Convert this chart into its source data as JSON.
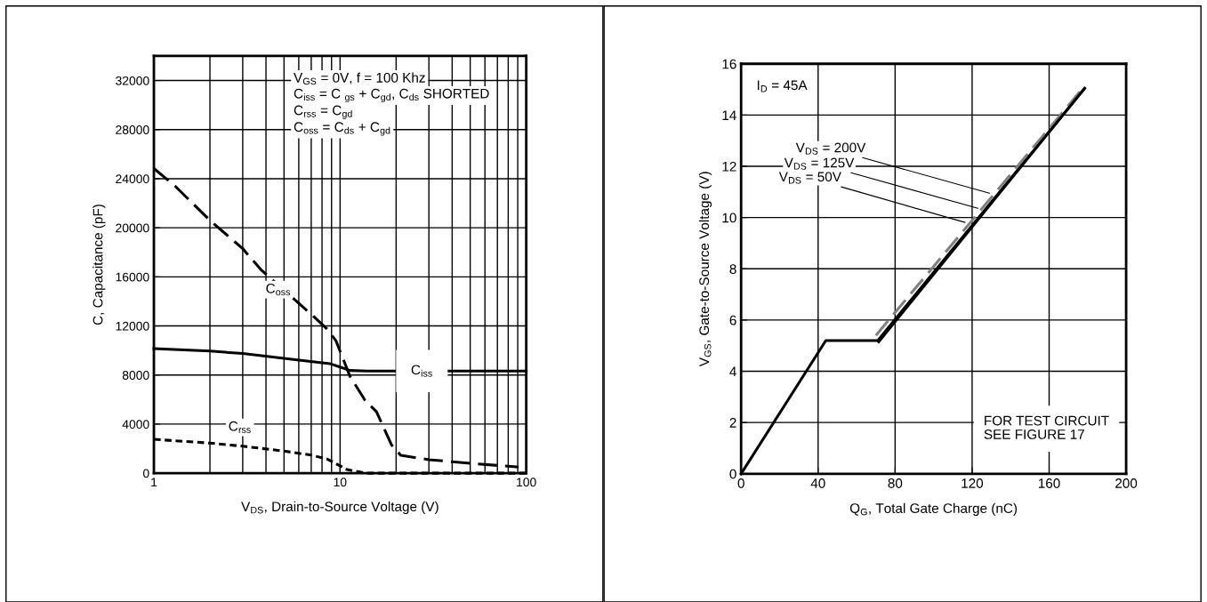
{
  "chart_data": [
    {
      "type": "line",
      "xlabel": "V$_{DS}$, Drain-to-Source Voltage (V)",
      "ylabel": "C, Capacitance (pF)",
      "log": "x",
      "xlim": [
        1,
        100
      ],
      "xticks": [
        1,
        10,
        100
      ],
      "ylim": [
        0,
        34000
      ],
      "yticks": [
        0,
        4000,
        8000,
        12000,
        16000,
        20000,
        24000,
        28000,
        32000
      ],
      "grid": true,
      "series": [
        {
          "color": "#000000",
          "line_style": "solid",
          "x": [
            1,
            2,
            3,
            5,
            8.8,
            10,
            11.3,
            14,
            20,
            50,
            100
          ],
          "values": [
            10150,
            9950,
            9750,
            9350,
            8930,
            8650,
            8370,
            8330,
            8330,
            8330,
            8330
          ]
        },
        {
          "color": "#000000",
          "line_style": "dashed",
          "x": [
            1,
            1.3,
            2,
            3,
            3.75,
            7.3,
            8.5,
            9.5,
            11.3,
            13.6,
            15.7,
            18.9,
            21.2,
            30,
            50,
            91
          ],
          "values": [
            24830,
            23400,
            20600,
            18300,
            16600,
            12700,
            11760,
            10800,
            7900,
            5950,
            5000,
            2300,
            1450,
            1100,
            800,
            500
          ]
        },
        {
          "color": "#000000",
          "line_style": "dotted",
          "x": [
            1,
            2,
            3,
            5,
            7,
            8.5,
            10,
            10.9,
            13.7,
            20,
            50,
            100
          ],
          "values": [
            2760,
            2450,
            2200,
            1800,
            1470,
            1160,
            600,
            290,
            0,
            0,
            0,
            0
          ]
        }
      ],
      "annotations": [
        "V$_{GS}$ = 0V, f = 100 Khz",
        "C$_{iss}$ = C $_{gs}$ + C$_{gd}$, C$_{ds}$ SHORTED",
        "C$_{rss}$ = C$_{gd}$",
        "C$_{oss}$ = C$_{ds}$ + C$_{gd}$",
        "C$_{oss}$",
        "C$_{rss}$",
        {
          "text": "C$_{iss}$",
          "x": 27.5,
          "y": 8330
        }
      ]
    },
    {
      "type": "line",
      "xlabel": "Q$_{G}$, Total Gate Charge (nC)",
      "ylabel": "V$_{GS}$, Gate-to-Source Voltage (V)",
      "xlim": [
        0,
        200
      ],
      "xticks": [
        0,
        40,
        80,
        120,
        160,
        200
      ],
      "ylim": [
        0,
        16
      ],
      "yticks": [
        0,
        2,
        4,
        6,
        8,
        10,
        12,
        14,
        16
      ],
      "grid": true,
      "series": [
        {
          "color": "#000000",
          "line_style": "solid",
          "x": [
            0,
            44,
            71,
            178
          ],
          "values": [
            0,
            5.2,
            5.2,
            15
          ]
        },
        {
          "color": "#808080",
          "line_style": "dashed",
          "x": [
            70,
            177.5
          ],
          "values": [
            5.4,
            15.05
          ]
        },
        {
          "color": "#000000",
          "line_style": "solid",
          "x": [
            71.5,
            178.5
          ],
          "values": [
            5.15,
            15.05
          ]
        }
      ],
      "annotations": [
        "I$_{D}$ = 45A",
        "FOR TEST CIRCUIT\nSEE FIGURE 17",
        {
          "text": "V$_{DS}$ = 200V",
          "x": 129,
          "y": 10.95
        },
        {
          "text": "V$_{DS}$ = 125V",
          "x": 123,
          "y": 10.36
        },
        {
          "text": "V$_{DS}$ = 50V",
          "x": 116.3,
          "y": 9.81
        }
      ]
    }
  ]
}
